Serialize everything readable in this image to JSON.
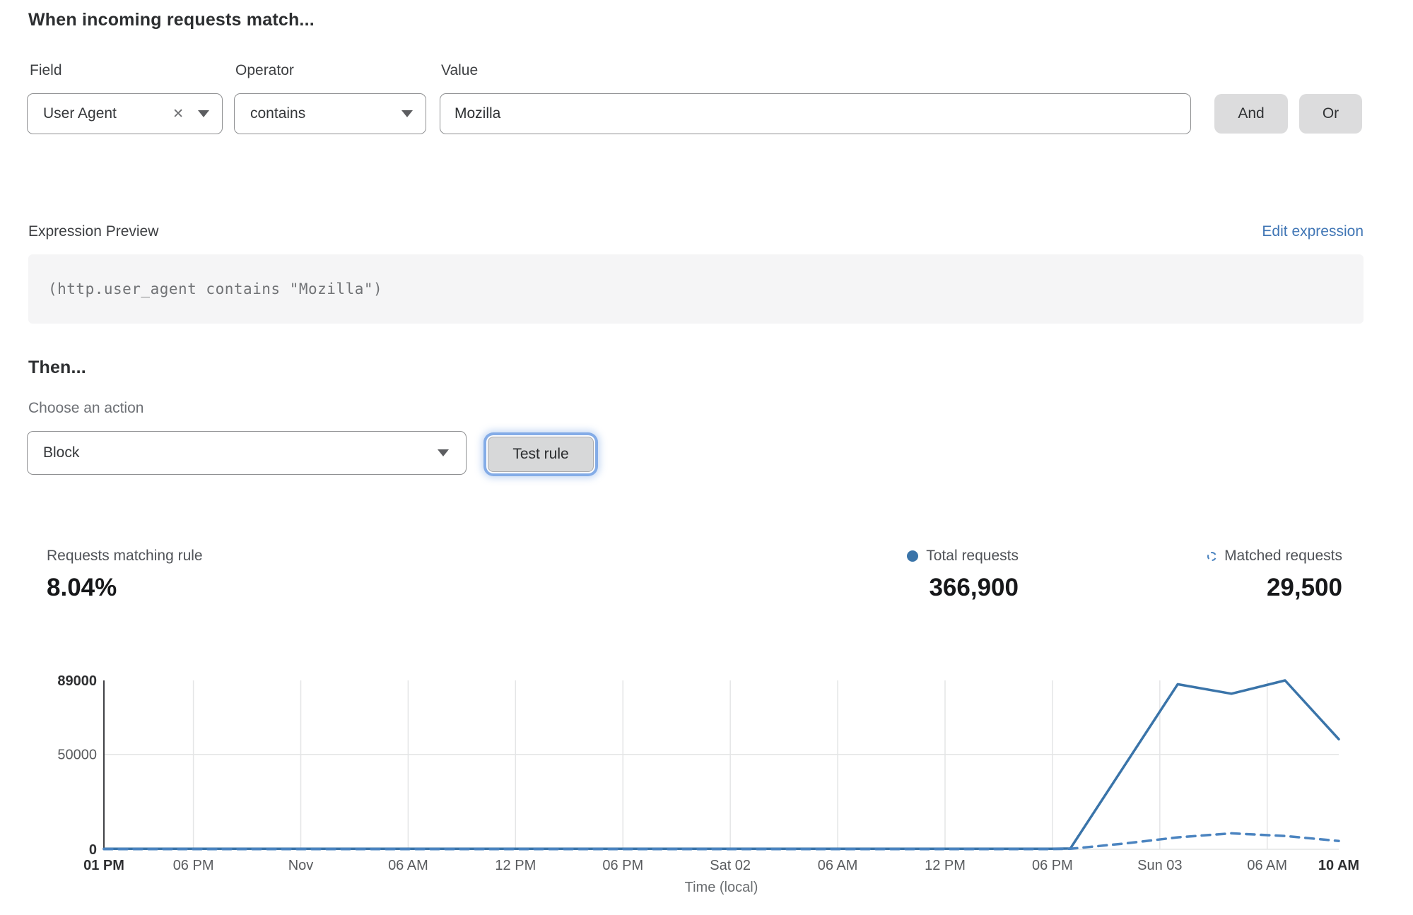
{
  "rule_builder": {
    "title": "When incoming requests match...",
    "field": {
      "label": "Field",
      "value": "User Agent"
    },
    "operator": {
      "label": "Operator",
      "value": "contains"
    },
    "value_input": {
      "label": "Value",
      "value": "Mozilla"
    },
    "and_button": "And",
    "or_button": "Or"
  },
  "expression_preview": {
    "label": "Expression Preview",
    "edit_link": "Edit expression",
    "expression": "(http.user_agent contains \"Mozilla\")"
  },
  "action_section": {
    "title": "Then...",
    "choose_label": "Choose an action",
    "selected_action": "Block",
    "test_button": "Test rule"
  },
  "stats": {
    "matching_rule": {
      "label": "Requests matching rule",
      "value": "8.04%"
    },
    "total_requests": {
      "label": "Total requests",
      "value": "366,900"
    },
    "matched_requests": {
      "label": "Matched requests",
      "value": "29,500"
    }
  },
  "colors": {
    "link_blue": "#4076b5",
    "total_line": "#3a74a9",
    "matched_line": "#4b84c0",
    "grid": "#e4e5e6",
    "axis": "#414246",
    "focus_ring": "#84ace7"
  },
  "chart_data": {
    "type": "line",
    "title": "",
    "xlabel": "Time (local)",
    "ylabel": "",
    "xlim_hours": [
      0,
      69
    ],
    "ylim": [
      0,
      89000
    ],
    "grid": "vertical at each x tick; horizontal at 0 and 50000",
    "legend_position": "top-right stats row",
    "x_ticks": [
      {
        "hour": 0,
        "label": "01 PM",
        "bold": true
      },
      {
        "hour": 5,
        "label": "06 PM",
        "bold": false
      },
      {
        "hour": 11,
        "label": "Nov",
        "bold": false
      },
      {
        "hour": 17,
        "label": "06 AM",
        "bold": false
      },
      {
        "hour": 23,
        "label": "12 PM",
        "bold": false
      },
      {
        "hour": 29,
        "label": "06 PM",
        "bold": false
      },
      {
        "hour": 35,
        "label": "Sat 02",
        "bold": false
      },
      {
        "hour": 41,
        "label": "06 AM",
        "bold": false
      },
      {
        "hour": 47,
        "label": "12 PM",
        "bold": false
      },
      {
        "hour": 53,
        "label": "06 PM",
        "bold": false
      },
      {
        "hour": 59,
        "label": "Sun 03",
        "bold": false
      },
      {
        "hour": 65,
        "label": "06 AM",
        "bold": false
      },
      {
        "hour": 69,
        "label": "10 AM",
        "bold": true
      }
    ],
    "y_ticks": [
      {
        "value": 0,
        "label": "0",
        "bold": true
      },
      {
        "value": 50000,
        "label": "50000",
        "bold": false
      },
      {
        "value": 89000,
        "label": "89000",
        "bold": true
      }
    ],
    "series": [
      {
        "name": "Total requests",
        "style": "solid",
        "color": "#3a74a9",
        "points": [
          [
            0,
            250
          ],
          [
            5,
            250
          ],
          [
            11,
            250
          ],
          [
            17,
            250
          ],
          [
            23,
            250
          ],
          [
            29,
            250
          ],
          [
            35,
            250
          ],
          [
            41,
            250
          ],
          [
            47,
            250
          ],
          [
            53,
            250
          ],
          [
            54,
            400
          ],
          [
            60,
            87000
          ],
          [
            63,
            82000
          ],
          [
            66,
            89000
          ],
          [
            69,
            58000
          ]
        ]
      },
      {
        "name": "Matched requests",
        "style": "dashed",
        "color": "#4b84c0",
        "points": [
          [
            0,
            120
          ],
          [
            5,
            120
          ],
          [
            11,
            120
          ],
          [
            17,
            120
          ],
          [
            23,
            120
          ],
          [
            29,
            120
          ],
          [
            35,
            120
          ],
          [
            41,
            120
          ],
          [
            47,
            120
          ],
          [
            53,
            120
          ],
          [
            54,
            250
          ],
          [
            57,
            3000
          ],
          [
            60,
            6300
          ],
          [
            63,
            8400
          ],
          [
            66,
            7000
          ],
          [
            69,
            4400
          ]
        ]
      }
    ]
  }
}
